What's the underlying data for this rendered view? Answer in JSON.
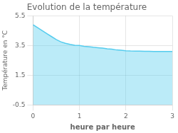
{
  "chart_data": {
    "type": "area",
    "title": "Evolution de la température",
    "xlabel": "heure par heure",
    "ylabel": "Température en °C",
    "x": [
      0,
      0.1,
      0.2,
      0.3,
      0.4,
      0.5,
      0.6,
      0.7,
      0.8,
      0.9,
      1.0,
      1.1,
      1.2,
      1.3,
      1.4,
      1.5,
      1.6,
      1.7,
      1.8,
      1.9,
      2.0,
      2.1,
      2.2,
      2.3,
      2.4,
      2.5,
      2.6,
      2.7,
      2.8,
      2.9,
      3.0
    ],
    "values": [
      4.9,
      4.7,
      4.5,
      4.3,
      4.1,
      3.9,
      3.75,
      3.65,
      3.58,
      3.52,
      3.5,
      3.45,
      3.42,
      3.38,
      3.35,
      3.32,
      3.28,
      3.25,
      3.2,
      3.18,
      3.15,
      3.13,
      3.12,
      3.12,
      3.11,
      3.11,
      3.1,
      3.1,
      3.1,
      3.1,
      3.1
    ],
    "color": "#55ccee",
    "xlim": [
      0,
      3
    ],
    "ylim": [
      -0.5,
      5.5
    ],
    "xticks": [
      0,
      1,
      2,
      3
    ],
    "yticks": [
      -0.5,
      1.5,
      3.5,
      5.5
    ],
    "grid": true
  }
}
